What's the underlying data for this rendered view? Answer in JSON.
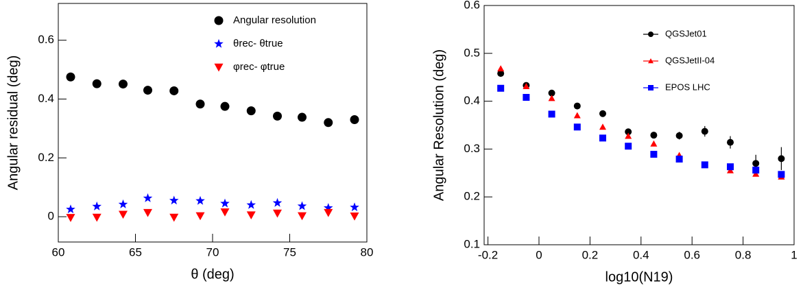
{
  "chart_data": [
    {
      "type": "scatter",
      "x_label": "θ (deg)",
      "y_label": "Angular residual (deg)",
      "xlim": [
        60,
        80
      ],
      "ylim": [
        -0.086,
        0.725
      ],
      "xticks": [
        60,
        65,
        70,
        75,
        80
      ],
      "yticks": [
        0,
        0.2,
        0.4,
        0.6
      ],
      "legend": "upper right",
      "x": [
        60.8,
        62.5,
        64.2,
        65.8,
        67.5,
        69.2,
        70.8,
        72.5,
        74.2,
        75.8,
        77.5,
        79.2
      ],
      "series": [
        {
          "name": "Angular resolution",
          "color": "#000000",
          "marker": "circle",
          "values": [
            0.475,
            0.452,
            0.451,
            0.43,
            0.428,
            0.383,
            0.375,
            0.36,
            0.342,
            0.338,
            0.32,
            0.33
          ]
        },
        {
          "name": "θrec- θtrue",
          "color": "#0000ff",
          "marker": "star",
          "values": [
            0.025,
            0.035,
            0.042,
            0.063,
            0.055,
            0.054,
            0.045,
            0.04,
            0.047,
            0.036,
            0.03,
            0.032
          ]
        },
        {
          "name": "φrec- φtrue",
          "color": "#ff0000",
          "marker": "triangle-down",
          "values": [
            -0.003,
            -0.002,
            0.008,
            0.014,
            -0.002,
            0.003,
            0.016,
            0.006,
            0.012,
            0.003,
            0.014,
            0.002
          ]
        }
      ]
    },
    {
      "type": "scatter",
      "x_label": "log10(N19)",
      "y_label": "Angular Resolution (deg)",
      "xlim": [
        -0.215,
        1.0
      ],
      "ylim": [
        0.1,
        0.6
      ],
      "xticks": [
        -0.2,
        0,
        0.2,
        0.4,
        0.6,
        0.8,
        1
      ],
      "yticks": [
        0.1,
        0.2,
        0.3,
        0.4,
        0.5,
        0.6
      ],
      "legend": "upper right",
      "x": [
        -0.15,
        -0.05,
        0.05,
        0.15,
        0.25,
        0.35,
        0.45,
        0.55,
        0.65,
        0.75,
        0.85,
        0.95
      ],
      "series": [
        {
          "name": "QGSJet01",
          "color": "#000000",
          "marker": "circle",
          "values": [
            0.458,
            0.433,
            0.417,
            0.39,
            0.374,
            0.336,
            0.329,
            0.328,
            0.337,
            0.314,
            0.27,
            0.28
          ],
          "errors": [
            0.005,
            0.003,
            0.004,
            0.004,
            0.005,
            0.005,
            0.006,
            0.008,
            0.011,
            0.013,
            0.018,
            0.024
          ]
        },
        {
          "name": "QGSJetII-04",
          "color": "#ff0000",
          "marker": "triangle-up",
          "values": [
            0.468,
            0.431,
            0.406,
            0.37,
            0.346,
            0.327,
            0.311,
            0.287,
            0.267,
            0.255,
            0.248,
            0.242
          ]
        },
        {
          "name": "EPOS LHC",
          "color": "#0000ff",
          "marker": "square",
          "values": [
            0.427,
            0.408,
            0.373,
            0.346,
            0.323,
            0.306,
            0.289,
            0.279,
            0.267,
            0.263,
            0.256,
            0.247
          ]
        }
      ]
    }
  ]
}
